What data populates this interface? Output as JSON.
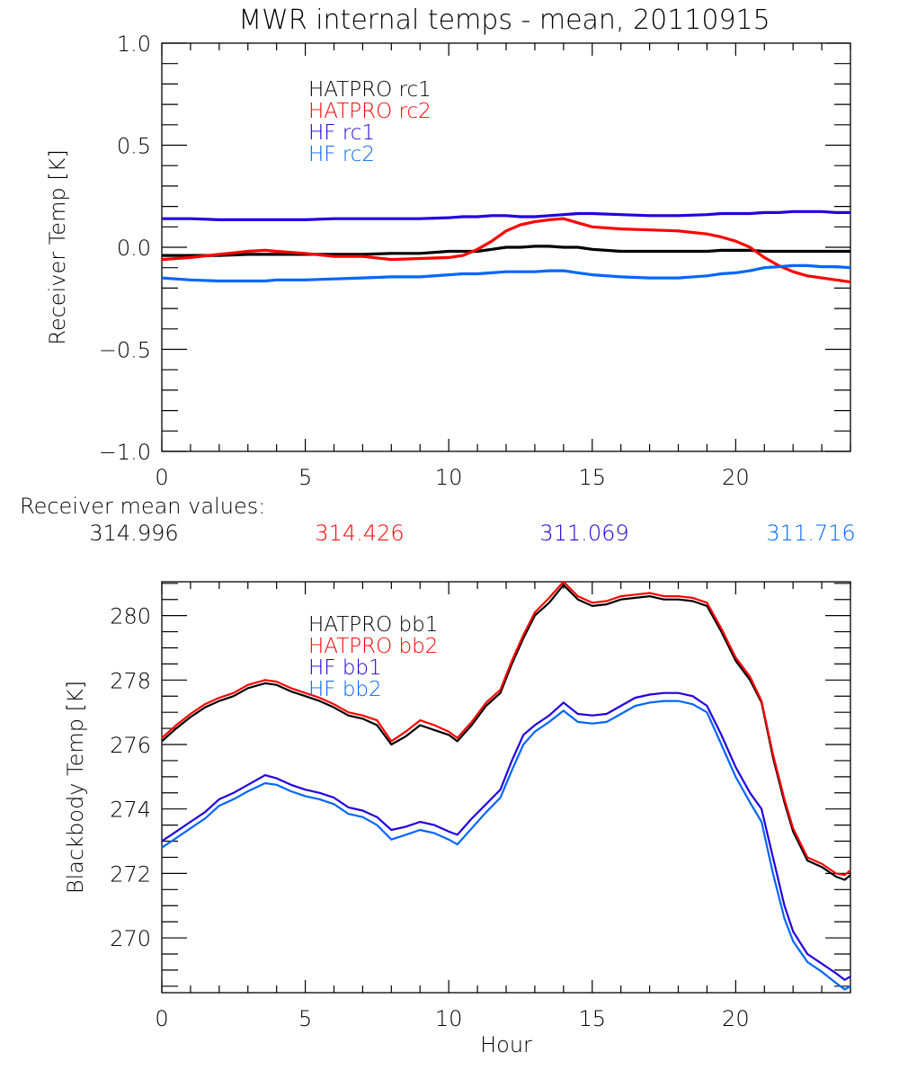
{
  "title": "MWR internal temps - mean, 20110915",
  "mean_values_label": "Receiver mean values:",
  "mean_values": [
    {
      "value": "314.996",
      "color": "#000000"
    },
    {
      "value": "314.426",
      "color": "#ff0000"
    },
    {
      "value": "311.069",
      "color": "#2200dd"
    },
    {
      "value": "311.716",
      "color": "#0066ff"
    }
  ],
  "chart_data": [
    {
      "type": "line",
      "title": "MWR internal temps - mean, 20110915",
      "xlabel": "",
      "ylabel": "Receiver Temp [K]",
      "xlim": [
        0,
        24
      ],
      "ylim": [
        -1.0,
        1.0
      ],
      "xticks": [
        "0",
        "5",
        "10",
        "15",
        "20"
      ],
      "yticks": [
        "-1.0",
        "-0.5",
        "0.0",
        "0.5",
        "1.0"
      ],
      "legend_position": "top-left",
      "x": [
        0,
        1,
        2,
        3,
        3.6,
        4,
        5,
        6,
        7,
        8,
        9,
        10,
        10.5,
        11,
        11.5,
        12,
        12.5,
        13,
        13.5,
        14,
        14.5,
        15,
        16,
        17,
        18,
        19,
        19.5,
        20,
        20.5,
        21,
        21.5,
        22,
        22.5,
        23,
        23.5,
        24
      ],
      "series": [
        {
          "name": "HATPRO rc1",
          "color": "#000000",
          "values": [
            -0.04,
            -0.04,
            -0.04,
            -0.035,
            -0.035,
            -0.035,
            -0.035,
            -0.035,
            -0.035,
            -0.03,
            -0.03,
            -0.02,
            -0.02,
            -0.02,
            -0.01,
            0.0,
            0.0,
            0.005,
            0.005,
            0.0,
            0.0,
            -0.01,
            -0.02,
            -0.02,
            -0.02,
            -0.02,
            -0.015,
            -0.015,
            -0.015,
            -0.02,
            -0.02,
            -0.02,
            -0.02,
            -0.02,
            -0.02,
            -0.02
          ]
        },
        {
          "name": "HATPRO rc2",
          "color": "#ff0000",
          "values": [
            -0.06,
            -0.05,
            -0.035,
            -0.02,
            -0.015,
            -0.02,
            -0.03,
            -0.045,
            -0.045,
            -0.06,
            -0.055,
            -0.05,
            -0.04,
            -0.01,
            0.03,
            0.08,
            0.11,
            0.125,
            0.135,
            0.14,
            0.12,
            0.1,
            0.09,
            0.085,
            0.08,
            0.065,
            0.05,
            0.03,
            0.0,
            -0.05,
            -0.09,
            -0.12,
            -0.14,
            -0.15,
            -0.16,
            -0.17
          ]
        },
        {
          "name": "HF rc1",
          "color": "#2200dd",
          "values": [
            0.14,
            0.14,
            0.135,
            0.135,
            0.135,
            0.135,
            0.135,
            0.14,
            0.14,
            0.14,
            0.14,
            0.145,
            0.15,
            0.15,
            0.155,
            0.155,
            0.15,
            0.15,
            0.155,
            0.16,
            0.165,
            0.165,
            0.16,
            0.155,
            0.155,
            0.16,
            0.165,
            0.165,
            0.165,
            0.17,
            0.17,
            0.175,
            0.175,
            0.175,
            0.17,
            0.17
          ]
        },
        {
          "name": "HF rc2",
          "color": "#0066ff",
          "values": [
            -0.15,
            -0.16,
            -0.165,
            -0.165,
            -0.165,
            -0.16,
            -0.16,
            -0.155,
            -0.15,
            -0.145,
            -0.145,
            -0.135,
            -0.13,
            -0.13,
            -0.125,
            -0.12,
            -0.12,
            -0.12,
            -0.115,
            -0.115,
            -0.125,
            -0.135,
            -0.145,
            -0.15,
            -0.15,
            -0.14,
            -0.13,
            -0.125,
            -0.115,
            -0.1,
            -0.095,
            -0.09,
            -0.09,
            -0.095,
            -0.095,
            -0.1
          ]
        }
      ]
    },
    {
      "type": "line",
      "title": "",
      "xlabel": "Hour",
      "ylabel": "Blackbody Temp [K]",
      "xlim": [
        0,
        24
      ],
      "ylim": [
        268.3,
        281.05
      ],
      "xticks": [
        "0",
        "5",
        "10",
        "15",
        "20"
      ],
      "yticks": [
        "270",
        "272",
        "274",
        "276",
        "278",
        "280"
      ],
      "legend_position": "top-left",
      "x": [
        0,
        0.5,
        1,
        1.5,
        2,
        2.5,
        3,
        3.6,
        4,
        4.5,
        5,
        5.5,
        6,
        6.5,
        7,
        7.5,
        8,
        8.5,
        9,
        9.5,
        10,
        10.3,
        10.8,
        11.3,
        11.8,
        12.2,
        12.6,
        13,
        13.5,
        14,
        14.5,
        15,
        15.5,
        16,
        16.5,
        17,
        17.5,
        18,
        18.5,
        19,
        19.5,
        20,
        20.5,
        20.9,
        21.3,
        21.7,
        22,
        22.5,
        23,
        23.5,
        23.8,
        24
      ],
      "series": [
        {
          "name": "HATPRO bb1",
          "color": "#000000",
          "values": [
            276.1,
            276.5,
            276.85,
            277.15,
            277.35,
            277.5,
            277.75,
            277.9,
            277.85,
            277.65,
            277.5,
            277.35,
            277.15,
            276.9,
            276.8,
            276.6,
            276.0,
            276.25,
            276.6,
            276.45,
            276.3,
            276.1,
            276.6,
            277.2,
            277.6,
            278.5,
            279.3,
            280.0,
            280.4,
            280.95,
            280.5,
            280.3,
            280.35,
            280.5,
            280.55,
            280.6,
            280.5,
            280.5,
            280.45,
            280.3,
            279.5,
            278.6,
            278.0,
            277.3,
            275.6,
            274.2,
            273.3,
            272.4,
            272.2,
            271.9,
            271.8,
            271.95
          ]
        },
        {
          "name": "HATPRO bb2",
          "color": "#ff0000",
          "values": [
            276.2,
            276.6,
            276.95,
            277.25,
            277.45,
            277.6,
            277.85,
            278.0,
            277.95,
            277.75,
            277.6,
            277.45,
            277.25,
            277.0,
            276.9,
            276.75,
            276.1,
            276.4,
            276.75,
            276.6,
            276.4,
            276.2,
            276.7,
            277.3,
            277.7,
            278.6,
            279.4,
            280.1,
            280.55,
            281.05,
            280.6,
            280.4,
            280.45,
            280.6,
            280.65,
            280.7,
            280.6,
            280.6,
            280.55,
            280.4,
            279.6,
            278.7,
            278.1,
            277.35,
            275.7,
            274.3,
            273.4,
            272.5,
            272.3,
            272.0,
            271.95,
            272.1
          ]
        },
        {
          "name": "HF bb1",
          "color": "#2200dd",
          "values": [
            273.0,
            273.3,
            273.6,
            273.9,
            274.3,
            274.5,
            274.75,
            275.05,
            274.95,
            274.75,
            274.6,
            274.5,
            274.35,
            274.05,
            273.95,
            273.75,
            273.35,
            273.45,
            273.6,
            273.5,
            273.3,
            273.2,
            273.7,
            274.15,
            274.6,
            275.5,
            276.3,
            276.6,
            276.9,
            277.3,
            276.95,
            276.9,
            276.95,
            277.2,
            277.45,
            277.55,
            277.6,
            277.6,
            277.5,
            277.2,
            276.3,
            275.3,
            274.5,
            274.0,
            272.5,
            271.0,
            270.2,
            269.5,
            269.2,
            268.9,
            268.7,
            268.8
          ]
        },
        {
          "name": "HF bb2",
          "color": "#0066ff",
          "values": [
            272.8,
            273.1,
            273.4,
            273.7,
            274.1,
            274.3,
            274.55,
            274.8,
            274.75,
            274.55,
            274.4,
            274.3,
            274.15,
            273.85,
            273.75,
            273.5,
            273.05,
            273.2,
            273.35,
            273.25,
            273.05,
            272.9,
            273.4,
            273.9,
            274.35,
            275.2,
            276.0,
            276.4,
            276.7,
            277.05,
            276.7,
            276.65,
            276.7,
            276.95,
            277.2,
            277.3,
            277.35,
            277.35,
            277.25,
            277.0,
            276.0,
            275.0,
            274.2,
            273.6,
            272.0,
            270.6,
            269.9,
            269.25,
            268.95,
            268.6,
            268.4,
            268.5
          ]
        }
      ]
    }
  ]
}
